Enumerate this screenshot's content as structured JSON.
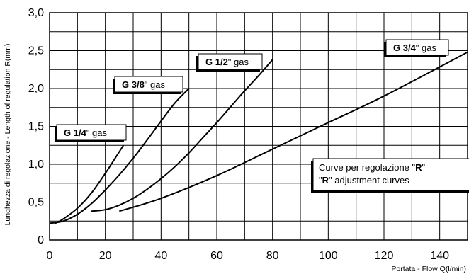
{
  "chart_data": {
    "type": "line",
    "ylabel": "Lunghezza di regolazione - Length of regulation  R(mm)",
    "xlabel": "Portata - Flow Q(l/min)",
    "xlim": [
      0,
      150
    ],
    "ylim": [
      0,
      3.0
    ],
    "x_ticks": [
      "0",
      "20",
      "40",
      "60",
      "80",
      "100",
      "120",
      "140"
    ],
    "y_ticks": [
      "0",
      "0,5",
      "1,0",
      "1,5",
      "2,0",
      "2,5",
      "3,0"
    ],
    "grid": true,
    "series": [
      {
        "name": "G 1/4\" gas",
        "label_bold": "G 1/4",
        "label_rest": "\" gas",
        "x": [
          2,
          5,
          10,
          15,
          20,
          23,
          26.5
        ],
        "y": [
          0.22,
          0.28,
          0.42,
          0.62,
          0.88,
          1.05,
          1.25
        ]
      },
      {
        "name": "G 3/8\" gas",
        "label_bold": "G 3/8",
        "label_rest": "\" gas",
        "x": [
          0,
          5,
          10,
          15,
          20,
          25,
          30,
          35,
          40,
          45,
          50
        ],
        "y": [
          0.22,
          0.25,
          0.34,
          0.48,
          0.66,
          0.86,
          1.08,
          1.32,
          1.57,
          1.81,
          2.0
        ]
      },
      {
        "name": "G 1/2\" gas",
        "label_bold": "G 1/2",
        "label_rest": "\" gas",
        "x": [
          15,
          20,
          25,
          30,
          35,
          40,
          45,
          50,
          55,
          60,
          65,
          70,
          75,
          80
        ],
        "y": [
          0.38,
          0.4,
          0.46,
          0.55,
          0.67,
          0.81,
          0.97,
          1.15,
          1.35,
          1.55,
          1.76,
          1.97,
          2.17,
          2.38
        ]
      },
      {
        "name": "G 3/4\" gas",
        "label_bold": "G 3/4",
        "label_rest": "\" gas",
        "x": [
          25,
          40,
          60,
          80,
          100,
          120,
          150
        ],
        "y": [
          0.38,
          0.55,
          0.85,
          1.2,
          1.55,
          1.9,
          2.48
        ]
      }
    ],
    "annotation": {
      "line1_text": "Curve per regolazione \"",
      "line1_bold": "R",
      "line1_end": "\"",
      "line2_open": "\"",
      "line2_bold": "R",
      "line2_text": "\" adjustment curves"
    }
  }
}
